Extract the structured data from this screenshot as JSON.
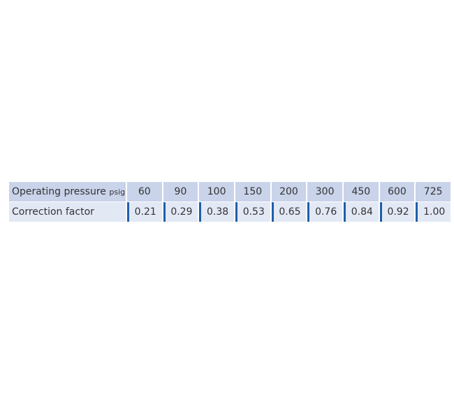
{
  "table": {
    "header": {
      "label": "Operating pressure",
      "unit": "psig",
      "values": [
        "60",
        "90",
        "100",
        "150",
        "200",
        "300",
        "450",
        "600",
        "725"
      ]
    },
    "row": {
      "label": "Correction factor",
      "values": [
        "0.21",
        "0.29",
        "0.38",
        "0.53",
        "0.65",
        "0.76",
        "0.84",
        "0.92",
        "1.00"
      ]
    }
  },
  "colors": {
    "header_bg": "#c9d3ea",
    "row_bg": "#e3e8f5",
    "accent": "#1f5fa8",
    "text": "#333333"
  }
}
